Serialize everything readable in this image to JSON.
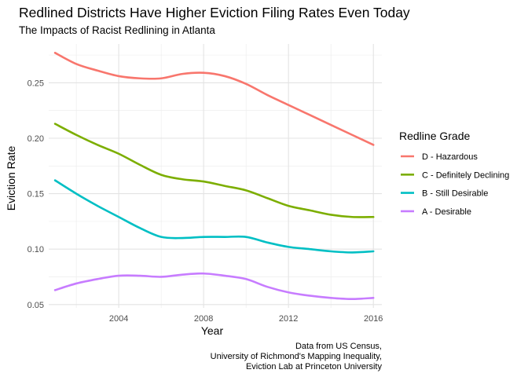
{
  "chart_data": {
    "type": "line",
    "title": "Redlined Districts Have Higher Eviction Filing Rates Even Today",
    "subtitle": "The Impacts of Racist Redlining in Atlanta",
    "xlabel": "Year",
    "ylabel": "Eviction Rate",
    "xlim": [
      2000.7,
      2016.4
    ],
    "ylim": [
      0.047,
      0.285
    ],
    "x_ticks": [
      2004,
      2008,
      2012,
      2016
    ],
    "y_ticks": [
      0.05,
      0.1,
      0.15,
      0.2,
      0.25
    ],
    "y_tick_labels": [
      "0.05",
      "0.10",
      "0.15",
      "0.20",
      "0.25"
    ],
    "grid": true,
    "legend_title": "Redline Grade",
    "legend_position": "right",
    "x": [
      2001,
      2002,
      2003,
      2004,
      2005,
      2006,
      2007,
      2008,
      2009,
      2010,
      2011,
      2012,
      2013,
      2014,
      2015,
      2016
    ],
    "series": [
      {
        "name": "D - Hazardous",
        "color": "#F8766D",
        "values": [
          0.277,
          0.267,
          0.261,
          0.256,
          0.254,
          0.254,
          0.258,
          0.259,
          0.256,
          0.249,
          0.239,
          0.23,
          0.221,
          0.212,
          0.203,
          0.194
        ]
      },
      {
        "name": "C - Definitely Declining",
        "color": "#7CAE00",
        "values": [
          0.213,
          0.203,
          0.194,
          0.186,
          0.176,
          0.167,
          0.163,
          0.161,
          0.157,
          0.153,
          0.146,
          0.139,
          0.135,
          0.131,
          0.129,
          0.129
        ]
      },
      {
        "name": "B - Still Desirable",
        "color": "#00BFC4",
        "values": [
          0.162,
          0.15,
          0.139,
          0.129,
          0.119,
          0.111,
          0.11,
          0.111,
          0.111,
          0.111,
          0.106,
          0.102,
          0.1,
          0.098,
          0.097,
          0.098
        ]
      },
      {
        "name": "A - Desirable",
        "color": "#C77CFF",
        "values": [
          0.063,
          0.069,
          0.073,
          0.076,
          0.076,
          0.075,
          0.077,
          0.078,
          0.076,
          0.073,
          0.066,
          0.061,
          0.058,
          0.056,
          0.055,
          0.056
        ]
      }
    ],
    "caption": [
      "Data from US Census,",
      "University of Richmond's Mapping Inequality,",
      "Eviction Lab at Princeton University"
    ]
  }
}
